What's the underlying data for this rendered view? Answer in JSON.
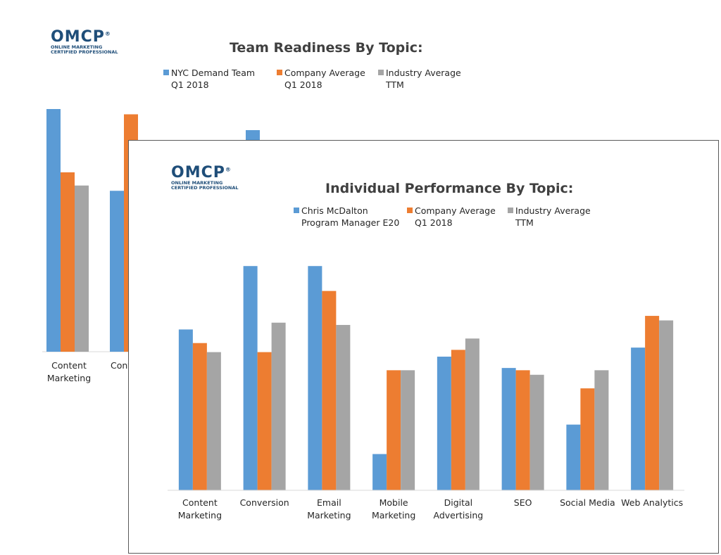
{
  "colors": {
    "series1": "#5b9bd5",
    "series2": "#ed7d31",
    "series3": "#a5a5a5",
    "logo": "#1f4e79"
  },
  "logo": {
    "name": "OMCP",
    "registered": "®",
    "tagline_line1": "ONLINE MARKETING",
    "tagline_line2": "CERTIFIED PROFESSIONAL"
  },
  "back_chart": {
    "title": "Team Readiness By Topic:",
    "legend": [
      {
        "line1": "NYC Demand Team",
        "line2": "Q1 2018"
      },
      {
        "line1": "Company Average",
        "line2": "Q1 2018"
      },
      {
        "line1": "Industry Average",
        "line2": "TTM"
      }
    ]
  },
  "front_chart": {
    "title": "Individual Performance By Topic:",
    "legend": [
      {
        "line1": "Chris McDalton",
        "line2": "Program Manager E20"
      },
      {
        "line1": "Company Average",
        "line2": "Q1 2018"
      },
      {
        "line1": "Industry Average",
        "line2": "TTM"
      }
    ]
  },
  "chart_data": [
    {
      "type": "bar",
      "title": "Team Readiness By Topic:",
      "categories": [
        "Content Marketing",
        "Conversion"
      ],
      "categories_visible": [
        "Content Marketing",
        "Conv"
      ],
      "ylim": [
        0,
        100
      ],
      "series": [
        {
          "name": "NYC Demand Team Q1 2018",
          "values": [
            92,
            61
          ]
        },
        {
          "name": "Company Average Q1 2018",
          "values": [
            68,
            90
          ]
        },
        {
          "name": "Industry Average TTM",
          "values": [
            63,
            null
          ]
        }
      ],
      "extra_visible_marks": [
        {
          "series": "NYC Demand Team Q1 2018",
          "value": 84
        }
      ]
    },
    {
      "type": "bar",
      "title": "Individual Performance By Topic:",
      "categories": [
        "Content Marketing",
        "Conversion",
        "Email Marketing",
        "Mobile Marketing",
        "Digital Advertising",
        "SEO",
        "Social Media",
        "Web Analytics"
      ],
      "category_labels": [
        [
          "Content",
          "Marketing"
        ],
        [
          "Conversion"
        ],
        [
          "Email",
          "Marketing"
        ],
        [
          "Mobile",
          "Marketing"
        ],
        [
          "Digital",
          "Advertising"
        ],
        [
          "SEO"
        ],
        [
          "Social Media"
        ],
        [
          "Web Analytics"
        ]
      ],
      "ylim": [
        0,
        100
      ],
      "series": [
        {
          "name": "Chris McDalton Program Manager E20",
          "values": [
            71,
            99,
            99,
            16,
            59,
            54,
            29,
            63
          ]
        },
        {
          "name": "Company Average Q1 2018",
          "values": [
            65,
            61,
            88,
            53,
            62,
            53,
            45,
            77
          ]
        },
        {
          "name": "Industry Average TTM",
          "values": [
            61,
            74,
            73,
            53,
            67,
            51,
            53,
            75
          ]
        }
      ]
    }
  ]
}
